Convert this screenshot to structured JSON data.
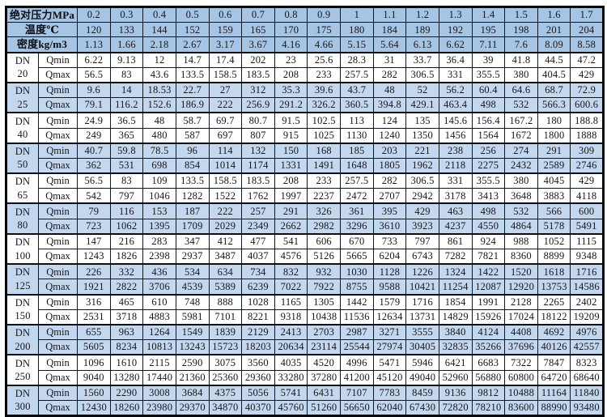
{
  "colors": {
    "header_bg": "#a6c4e4",
    "band_bg": "#c3d7ee",
    "plain_bg": "#ffffff",
    "border": "#0f1620",
    "text": "#15161a"
  },
  "row_labels": {
    "dn": "DN",
    "qmin": "Qmin",
    "qmax": "Qmax"
  },
  "header_rows": [
    {
      "label": "绝对压力MPa",
      "values": [
        "0.2",
        "0.3",
        "0.4",
        "0.5",
        "0.6",
        "0.7",
        "0.8",
        "0.9",
        "1",
        "1.1",
        "1.2",
        "1.3",
        "1.4",
        "1.5",
        "1.6",
        "1.7"
      ]
    },
    {
      "label": "温度℃",
      "values": [
        "120",
        "133",
        "144",
        "152",
        "159",
        "165",
        "170",
        "175",
        "180",
        "184",
        "189",
        "192",
        "195",
        "198",
        "201",
        "204"
      ]
    },
    {
      "label": "密度kg/m3",
      "values": [
        "1.13",
        "1.66",
        "2.18",
        "2.67",
        "3.17",
        "3.67",
        "4.16",
        "4.66",
        "5.15",
        "5.64",
        "6.13",
        "6.62",
        "7.11",
        "7.6",
        "8.09",
        "8.58"
      ]
    }
  ],
  "dn_groups": [
    {
      "size": "20",
      "qmin": [
        "6.22",
        "9.13",
        "12",
        "14.7",
        "17.4",
        "202",
        "23",
        "25.6",
        "28.3",
        "31",
        "33.7",
        "36.4",
        "39",
        "41.8",
        "44.5",
        "47.2"
      ],
      "qmax": [
        "56.5",
        "83",
        "43.6",
        "133.5",
        "158.5",
        "183.5",
        "208",
        "233",
        "257.5",
        "282",
        "306.5",
        "331",
        "355.5",
        "380",
        "404.5",
        "429"
      ]
    },
    {
      "size": "25",
      "qmin": [
        "9.6",
        "14",
        "18.53",
        "22.7",
        "27",
        "312",
        "35.3",
        "39.6",
        "43.7",
        "48",
        "52",
        "56.2",
        "60.4",
        "64.6",
        "68.7",
        "72.9"
      ],
      "qmax": [
        "79.1",
        "116.2",
        "152.6",
        "186.9",
        "222",
        "256.9",
        "291.2",
        "326.2",
        "360.5",
        "394.8",
        "429.1",
        "463.4",
        "498",
        "532",
        "566.3",
        "600.6"
      ]
    },
    {
      "size": "40",
      "qmin": [
        "24.9",
        "36.5",
        "48",
        "58.7",
        "69.7",
        "80.7",
        "91.5",
        "102.5",
        "113",
        "124",
        "135",
        "145.6",
        "156.4",
        "167.2",
        "180",
        "188.8"
      ],
      "qmax": [
        "249",
        "365",
        "480",
        "587",
        "697",
        "807",
        "915",
        "1025",
        "1130",
        "1240",
        "1350",
        "1456",
        "1564",
        "1672",
        "1800",
        "1888"
      ]
    },
    {
      "size": "50",
      "qmin": [
        "40.7",
        "59.8",
        "78.5",
        "96",
        "114",
        "132",
        "150",
        "168",
        "185",
        "203",
        "221",
        "238",
        "256",
        "274",
        "291",
        "309"
      ],
      "qmax": [
        "362",
        "531",
        "698",
        "854",
        "1014",
        "1174",
        "1331",
        "1491",
        "1648",
        "1805",
        "1962",
        "2118",
        "2275",
        "2432",
        "2589",
        "2746"
      ]
    },
    {
      "size": "65",
      "qmin": [
        "56.5",
        "83",
        "109",
        "133.5",
        "158.5",
        "183.5",
        "208",
        "233",
        "257.5",
        "282",
        "306.5",
        "331",
        "355.5",
        "380",
        "4045",
        "429"
      ],
      "qmax": [
        "542",
        "797",
        "1046",
        "1282",
        "1522",
        "1762",
        "1997",
        "2237",
        "2472",
        "2707",
        "2942",
        "3178",
        "3413",
        "3648",
        "3883",
        "4118"
      ]
    },
    {
      "size": "80",
      "qmin": [
        "79",
        "116",
        "153",
        "187",
        "222",
        "257",
        "291",
        "326",
        "361",
        "395",
        "429",
        "463",
        "498",
        "532",
        "566",
        "600"
      ],
      "qmax": [
        "723",
        "1062",
        "1395",
        "1709",
        "2029",
        "2349",
        "2662",
        "2982",
        "3296",
        "3610",
        "3923",
        "4237",
        "4550",
        "4864",
        "5178",
        "5491"
      ]
    },
    {
      "size": "100",
      "qmin": [
        "147",
        "216",
        "283",
        "347",
        "412",
        "477",
        "541",
        "606",
        "670",
        "733",
        "797",
        "861",
        "924",
        "988",
        "1052",
        "1115"
      ],
      "qmax": [
        "1243",
        "1826",
        "2398",
        "2937",
        "3487",
        "4037",
        "4576",
        "5126",
        "5665",
        "6204",
        "6743",
        "7282",
        "7821",
        "8360",
        "8899",
        "9348"
      ]
    },
    {
      "size": "125",
      "qmin": [
        "226",
        "332",
        "436",
        "534",
        "634",
        "734",
        "832",
        "932",
        "1030",
        "1128",
        "1226",
        "1324",
        "1422",
        "1520",
        "1618",
        "1716"
      ],
      "qmax": [
        "1921",
        "2822",
        "3706",
        "4539",
        "5389",
        "6239",
        "7022",
        "7922",
        "8755",
        "9588",
        "10421",
        "11254",
        "12087",
        "12920",
        "13753",
        "14586"
      ]
    },
    {
      "size": "150",
      "qmin": [
        "316",
        "465",
        "610",
        "748",
        "888",
        "1028",
        "1165",
        "1305",
        "1442",
        "1579",
        "1716",
        "1854",
        "1991",
        "2128",
        "2265",
        "2402"
      ],
      "qmax": [
        "2531",
        "3718",
        "4883",
        "5981",
        "7101",
        "8221",
        "9318",
        "10438",
        "11536",
        "12634",
        "13731",
        "14829",
        "15926",
        "17024",
        "18122",
        "19209"
      ]
    },
    {
      "size": "200",
      "qmin": [
        "655",
        "963",
        "1264",
        "1549",
        "1839",
        "2129",
        "2413",
        "2703",
        "2987",
        "3271",
        "3555",
        "3840",
        "4124",
        "4408",
        "4692",
        "4976"
      ],
      "qmax": [
        "5605",
        "8234",
        "10813",
        "13243",
        "15723",
        "18203",
        "20634",
        "23114",
        "25544",
        "27974",
        "30405",
        "32835",
        "35266",
        "37696",
        "40126",
        "42557"
      ]
    },
    {
      "size": "250",
      "qmin": [
        "1096",
        "1610",
        "2115",
        "2590",
        "3075",
        "3560",
        "4035",
        "4520",
        "4996",
        "5471",
        "5946",
        "6421",
        "6683",
        "7322",
        "7847",
        "8323"
      ],
      "qmax": [
        "9040",
        "13280",
        "17440",
        "21360",
        "25360",
        "29360",
        "33280",
        "37280",
        "41200",
        "45120",
        "49040",
        "52960",
        "56880",
        "60800",
        "64720",
        "68640"
      ]
    },
    {
      "size": "300",
      "qmin": [
        "1560",
        "2290",
        "3008",
        "3684",
        "4375",
        "5056",
        "5741",
        "6431",
        "7107",
        "7783",
        "8459",
        "9136",
        "9812",
        "10488",
        "11164",
        "11840"
      ],
      "qmax": [
        "12430",
        "18260",
        "23980",
        "29370",
        "34870",
        "40370",
        "45760",
        "51260",
        "56650",
        "62040",
        "67430",
        "72820",
        "78210",
        "83600",
        "88990",
        "93480"
      ]
    }
  ]
}
